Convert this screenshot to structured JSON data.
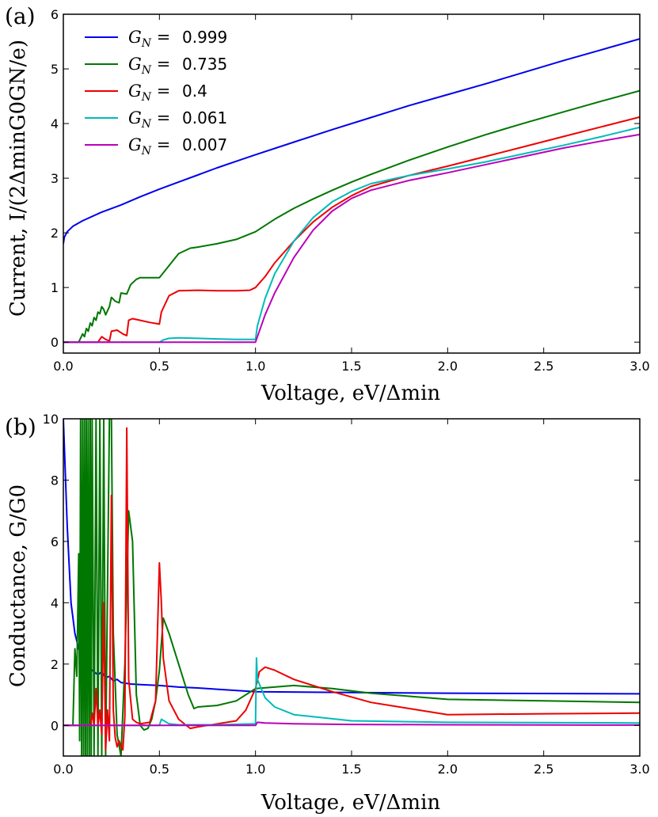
{
  "chart_data": [
    {
      "panel_label": "(a)",
      "type": "line",
      "xlabel": "Voltage, eV/Δmin",
      "ylabel": "Current, I/(2ΔminG0GN/e)",
      "xlim": [
        0.0,
        3.0
      ],
      "ylim": [
        -0.2,
        6.0
      ],
      "xticks": [
        "0.0",
        "0.5",
        "1.0",
        "1.5",
        "2.0",
        "2.5",
        "3.0"
      ],
      "yticks": [
        "0",
        "1",
        "2",
        "3",
        "4",
        "5",
        "6"
      ],
      "grid": false,
      "legend_position": "upper-left",
      "series": [
        {
          "name": "GN =0.999",
          "legend_symbol": "G_N =",
          "legend_value": "0.999",
          "color": "#0000ee",
          "x": [
            0.0,
            0.005,
            0.02,
            0.05,
            0.1,
            0.2,
            0.3,
            0.4,
            0.5,
            0.6,
            0.7,
            0.8,
            0.9,
            1.0,
            1.2,
            1.4,
            1.6,
            1.8,
            2.0,
            2.2,
            2.4,
            2.6,
            2.8,
            3.0
          ],
          "y": [
            1.8,
            1.92,
            2.02,
            2.12,
            2.22,
            2.38,
            2.51,
            2.66,
            2.8,
            2.93,
            3.06,
            3.19,
            3.31,
            3.43,
            3.66,
            3.89,
            4.11,
            4.33,
            4.53,
            4.73,
            4.94,
            5.15,
            5.35,
            5.55
          ]
        },
        {
          "name": "GN =0.735",
          "legend_symbol": "G_N =",
          "legend_value": "0.735",
          "color": "#007700",
          "x": [
            0.0,
            0.08,
            0.1,
            0.11,
            0.12,
            0.13,
            0.14,
            0.15,
            0.16,
            0.17,
            0.18,
            0.19,
            0.2,
            0.21,
            0.22,
            0.24,
            0.25,
            0.27,
            0.29,
            0.3,
            0.33,
            0.35,
            0.38,
            0.4,
            0.45,
            0.5,
            0.55,
            0.6,
            0.66,
            0.7,
            0.8,
            0.9,
            1.0,
            1.1,
            1.2,
            1.3,
            1.4,
            1.5,
            1.6,
            1.8,
            2.0,
            2.2,
            2.4,
            2.6,
            2.8,
            3.0
          ],
          "y": [
            0.0,
            0.0,
            0.15,
            0.1,
            0.25,
            0.2,
            0.35,
            0.3,
            0.45,
            0.4,
            0.55,
            0.52,
            0.65,
            0.6,
            0.5,
            0.65,
            0.82,
            0.75,
            0.72,
            0.9,
            0.88,
            1.05,
            1.15,
            1.18,
            1.18,
            1.18,
            1.4,
            1.62,
            1.72,
            1.74,
            1.8,
            1.88,
            2.02,
            2.25,
            2.45,
            2.62,
            2.78,
            2.93,
            3.07,
            3.33,
            3.57,
            3.8,
            4.01,
            4.21,
            4.41,
            4.6
          ]
        },
        {
          "name": "GN =0.4",
          "legend_symbol": "G_N =",
          "legend_value": "0.4",
          "color": "#ee0000",
          "x": [
            0.0,
            0.18,
            0.2,
            0.22,
            0.24,
            0.25,
            0.28,
            0.31,
            0.33,
            0.34,
            0.36,
            0.4,
            0.45,
            0.5,
            0.51,
            0.55,
            0.6,
            0.7,
            0.8,
            0.9,
            0.97,
            1.0,
            1.05,
            1.1,
            1.2,
            1.3,
            1.4,
            1.5,
            1.6,
            1.8,
            2.0,
            2.2,
            2.4,
            2.6,
            2.8,
            3.0
          ],
          "y": [
            0.0,
            0.0,
            0.1,
            0.05,
            0.02,
            0.2,
            0.22,
            0.15,
            0.12,
            0.4,
            0.43,
            0.4,
            0.36,
            0.33,
            0.55,
            0.85,
            0.94,
            0.95,
            0.94,
            0.94,
            0.95,
            1.0,
            1.2,
            1.45,
            1.85,
            2.2,
            2.47,
            2.68,
            2.85,
            3.05,
            3.22,
            3.4,
            3.58,
            3.76,
            3.94,
            4.12
          ]
        },
        {
          "name": "GN =0.061",
          "legend_symbol": "G_N =",
          "legend_value": "0.061",
          "color": "#00bbbb",
          "x": [
            0.0,
            0.5,
            0.52,
            0.55,
            0.6,
            0.7,
            0.8,
            0.9,
            1.0,
            1.01,
            1.05,
            1.1,
            1.2,
            1.3,
            1.4,
            1.5,
            1.6,
            1.8,
            2.0,
            2.2,
            2.4,
            2.6,
            2.8,
            3.0
          ],
          "y": [
            0.0,
            0.0,
            0.04,
            0.07,
            0.08,
            0.07,
            0.06,
            0.05,
            0.05,
            0.3,
            0.8,
            1.25,
            1.85,
            2.28,
            2.57,
            2.76,
            2.9,
            3.05,
            3.17,
            3.3,
            3.45,
            3.6,
            3.76,
            3.93
          ]
        },
        {
          "name": "GN =0.007",
          "legend_symbol": "G_N =",
          "legend_value": "0.007",
          "color": "#bb00bb",
          "x": [
            0.0,
            1.0,
            1.02,
            1.05,
            1.1,
            1.2,
            1.3,
            1.4,
            1.5,
            1.6,
            1.8,
            2.0,
            2.2,
            2.4,
            2.6,
            2.8,
            3.0
          ],
          "y": [
            0.0,
            0.0,
            0.2,
            0.5,
            0.9,
            1.55,
            2.05,
            2.4,
            2.63,
            2.78,
            2.96,
            3.1,
            3.25,
            3.4,
            3.55,
            3.68,
            3.8
          ]
        }
      ]
    },
    {
      "panel_label": "(b)",
      "type": "line",
      "xlabel": "Voltage, eV/Δmin",
      "ylabel": "Conductance, G/G0",
      "xlim": [
        0.0,
        3.0
      ],
      "ylim": [
        -1.0,
        10.0
      ],
      "xticks": [
        "0.0",
        "0.5",
        "1.0",
        "1.5",
        "2.0",
        "2.5",
        "3.0"
      ],
      "yticks": [
        "0",
        "2",
        "4",
        "6",
        "8",
        "10"
      ],
      "grid": false,
      "series": [
        {
          "name": "GN =0.999",
          "color": "#0000ee",
          "x": [
            0.0,
            0.02,
            0.04,
            0.06,
            0.08,
            0.1,
            0.12,
            0.14,
            0.16,
            0.18,
            0.2,
            0.22,
            0.24,
            0.26,
            0.28,
            0.3,
            0.35,
            0.4,
            0.5,
            0.6,
            0.7,
            0.8,
            1.0,
            1.5,
            2.0,
            2.5,
            3.0
          ],
          "y": [
            10.0,
            6.5,
            4.0,
            3.0,
            2.5,
            2.2,
            2.0,
            1.85,
            1.75,
            1.65,
            1.75,
            1.55,
            1.6,
            1.45,
            1.5,
            1.4,
            1.35,
            1.33,
            1.3,
            1.25,
            1.22,
            1.18,
            1.1,
            1.07,
            1.05,
            1.04,
            1.03
          ]
        },
        {
          "name": "GN =0.735",
          "color": "#007700",
          "x": [
            0.0,
            0.05,
            0.06,
            0.07,
            0.08,
            0.085,
            0.09,
            0.095,
            0.1,
            0.105,
            0.11,
            0.115,
            0.12,
            0.125,
            0.13,
            0.135,
            0.14,
            0.145,
            0.15,
            0.16,
            0.17,
            0.18,
            0.19,
            0.2,
            0.21,
            0.22,
            0.24,
            0.25,
            0.26,
            0.28,
            0.3,
            0.32,
            0.34,
            0.36,
            0.38,
            0.4,
            0.42,
            0.44,
            0.46,
            0.48,
            0.5,
            0.52,
            0.55,
            0.6,
            0.65,
            0.68,
            0.7,
            0.8,
            0.9,
            1.0,
            1.2,
            1.4,
            1.6,
            1.8,
            2.0,
            2.5,
            3.0
          ],
          "y": [
            0.0,
            0.0,
            2.5,
            1.6,
            5.6,
            -0.5,
            10.0,
            -1.0,
            10.0,
            -1.0,
            10.0,
            -1.0,
            10.0,
            -1.0,
            10.0,
            -1.0,
            10.0,
            -1.0,
            10.0,
            -1.0,
            10.0,
            -1.0,
            10.0,
            -1.0,
            10.0,
            -1.0,
            10.0,
            10.0,
            3.0,
            -0.3,
            -1.0,
            2.0,
            7.0,
            6.0,
            1.0,
            0.0,
            -0.15,
            -0.1,
            0.2,
            0.8,
            1.8,
            3.5,
            3.0,
            2.0,
            1.0,
            0.55,
            0.6,
            0.65,
            0.8,
            1.2,
            1.3,
            1.2,
            1.05,
            0.95,
            0.85,
            0.8,
            0.75
          ]
        },
        {
          "name": "GN =0.4",
          "color": "#ee0000",
          "x": [
            0.0,
            0.14,
            0.15,
            0.16,
            0.17,
            0.18,
            0.19,
            0.2,
            0.21,
            0.22,
            0.23,
            0.24,
            0.25,
            0.26,
            0.27,
            0.28,
            0.29,
            0.3,
            0.31,
            0.32,
            0.33,
            0.34,
            0.36,
            0.38,
            0.4,
            0.45,
            0.48,
            0.5,
            0.51,
            0.52,
            0.55,
            0.6,
            0.66,
            0.7,
            0.8,
            0.9,
            0.95,
            1.0,
            1.02,
            1.05,
            1.1,
            1.2,
            1.4,
            1.6,
            1.8,
            2.0,
            2.5,
            3.0
          ],
          "y": [
            0.0,
            0.0,
            0.4,
            0.0,
            1.2,
            0.0,
            0.5,
            -0.3,
            4.0,
            -0.8,
            0.5,
            -0.5,
            7.5,
            0.5,
            -0.4,
            -0.7,
            -0.5,
            -0.7,
            -0.8,
            0.3,
            9.7,
            1.5,
            0.2,
            0.1,
            0.05,
            0.1,
            0.8,
            5.3,
            4.0,
            2.2,
            0.8,
            0.2,
            -0.1,
            -0.05,
            0.05,
            0.15,
            0.5,
            1.2,
            1.75,
            1.9,
            1.8,
            1.5,
            1.1,
            0.75,
            0.55,
            0.35,
            0.38,
            0.4
          ]
        },
        {
          "name": "GN =0.061",
          "color": "#00bbbb",
          "x": [
            0.0,
            0.5,
            0.51,
            0.55,
            0.6,
            0.8,
            1.0,
            1.005,
            1.01,
            1.05,
            1.1,
            1.2,
            1.5,
            2.0,
            3.0
          ],
          "y": [
            0.0,
            0.0,
            0.2,
            0.05,
            0.02,
            0.02,
            0.05,
            2.2,
            1.5,
            0.9,
            0.6,
            0.35,
            0.15,
            0.1,
            0.08
          ]
        },
        {
          "name": "GN =0.007",
          "color": "#bb00bb",
          "x": [
            0.0,
            1.0,
            1.01,
            1.05,
            1.2,
            1.5,
            2.0,
            3.0
          ],
          "y": [
            0.0,
            0.0,
            0.1,
            0.08,
            0.05,
            0.03,
            0.02,
            0.01
          ]
        }
      ]
    }
  ]
}
